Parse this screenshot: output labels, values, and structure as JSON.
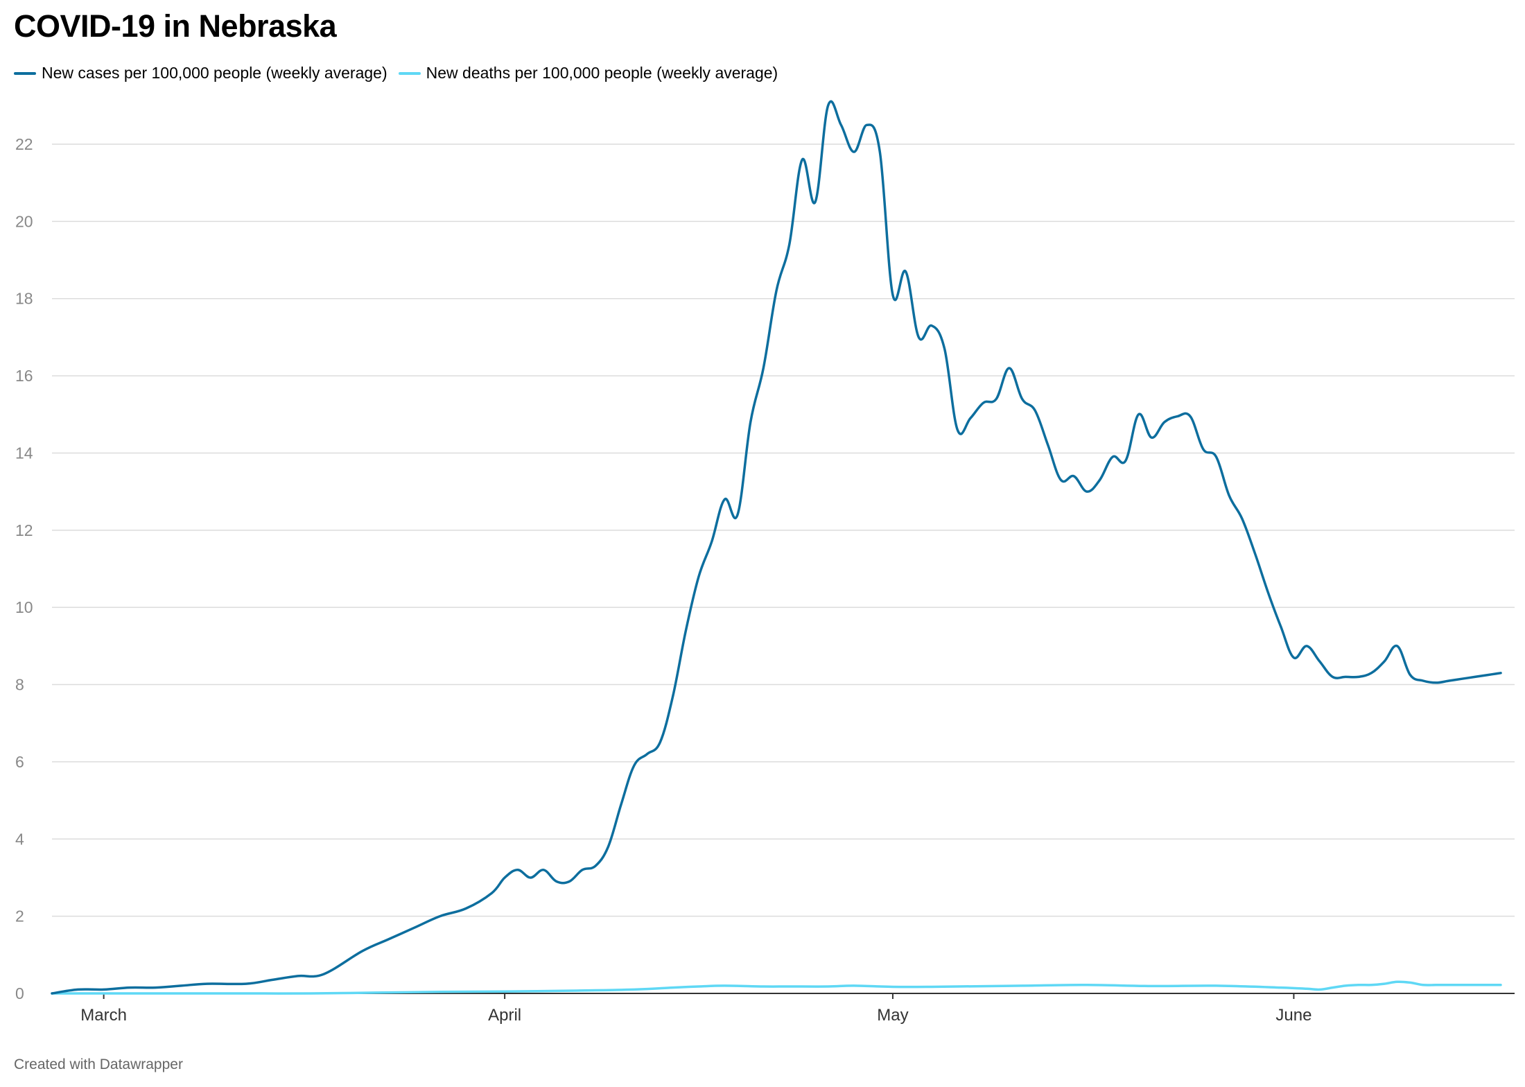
{
  "title": "COVID-19 in Nebraska",
  "credit": "Created with Datawrapper",
  "chart_data": {
    "type": "line",
    "title": "COVID-19 in Nebraska",
    "ylim": [
      0,
      23
    ],
    "yticks": [
      0,
      2,
      4,
      6,
      8,
      10,
      12,
      14,
      16,
      18,
      20,
      22
    ],
    "xticks": [
      {
        "label": "March",
        "day": 9
      },
      {
        "label": "April",
        "day": 40
      },
      {
        "label": "May",
        "day": 70
      },
      {
        "label": "June",
        "day": 101
      }
    ],
    "grid": true,
    "legend_position": "top-left",
    "series": [
      {
        "name": "New cases per 100,000 people (weekly average)",
        "color": "#0d6e9e",
        "x": [
          5,
          7,
          9,
          11,
          13,
          15,
          17,
          20,
          22,
          24,
          26,
          29,
          31,
          33,
          35,
          37,
          39,
          40,
          41,
          42,
          43,
          44,
          45,
          46,
          47,
          48,
          49,
          50,
          51,
          52,
          53,
          54,
          55,
          56,
          57,
          58,
          59,
          60,
          61,
          62,
          63,
          64,
          65,
          66,
          67,
          68,
          69,
          70,
          71,
          72,
          73,
          74,
          75,
          76,
          77,
          78,
          79,
          80,
          81,
          82,
          83,
          84,
          85,
          86,
          87,
          88,
          89,
          90,
          91,
          92,
          93,
          94,
          95,
          96,
          97,
          98,
          99,
          100,
          101,
          102,
          103,
          104,
          105,
          106,
          107,
          108,
          109,
          110,
          111,
          112,
          113,
          114,
          115,
          116,
          117
        ],
        "values": [
          0.0,
          0.1,
          0.1,
          0.15,
          0.15,
          0.2,
          0.25,
          0.25,
          0.35,
          0.45,
          0.5,
          1.1,
          1.4,
          1.7,
          2.0,
          2.2,
          2.6,
          3.0,
          3.2,
          3.0,
          3.2,
          2.9,
          2.9,
          3.2,
          3.3,
          3.8,
          4.9,
          5.9,
          6.2,
          6.5,
          7.7,
          9.4,
          10.8,
          11.7,
          12.8,
          12.4,
          14.8,
          16.2,
          18.2,
          19.4,
          21.6,
          20.5,
          23.0,
          22.5,
          21.8,
          22.5,
          21.8,
          18.1,
          18.7,
          17.0,
          17.3,
          16.7,
          14.6,
          14.9,
          15.3,
          15.4,
          16.2,
          15.4,
          15.1,
          14.2,
          13.3,
          13.4,
          13.0,
          13.3,
          13.9,
          13.8,
          15.0,
          14.4,
          14.8,
          14.95,
          14.95,
          14.1,
          13.9,
          12.9,
          12.3,
          11.4,
          10.4,
          9.5,
          8.7,
          9.0,
          8.6,
          8.2,
          8.2,
          8.2,
          8.3,
          8.6,
          9.0,
          8.25,
          8.1,
          8.05,
          8.1,
          8.15,
          8.2,
          8.25,
          8.3
        ]
      },
      {
        "name": "New deaths per 100,000 people (weekly average)",
        "color": "#5fd8f5",
        "x": [
          5,
          10,
          15,
          20,
          25,
          30,
          35,
          40,
          45,
          50,
          53,
          55,
          57,
          60,
          62,
          65,
          67,
          70,
          73,
          75,
          80,
          85,
          90,
          95,
          100,
          102,
          103,
          104,
          105,
          106,
          107,
          108,
          109,
          110,
          111,
          112,
          113,
          117
        ],
        "values": [
          0.0,
          0.0,
          0.0,
          0.0,
          0.0,
          0.02,
          0.04,
          0.05,
          0.07,
          0.1,
          0.15,
          0.18,
          0.2,
          0.18,
          0.18,
          0.18,
          0.2,
          0.17,
          0.17,
          0.18,
          0.2,
          0.22,
          0.19,
          0.2,
          0.15,
          0.12,
          0.1,
          0.15,
          0.2,
          0.22,
          0.22,
          0.25,
          0.3,
          0.28,
          0.22,
          0.22,
          0.22,
          0.22
        ]
      }
    ]
  }
}
